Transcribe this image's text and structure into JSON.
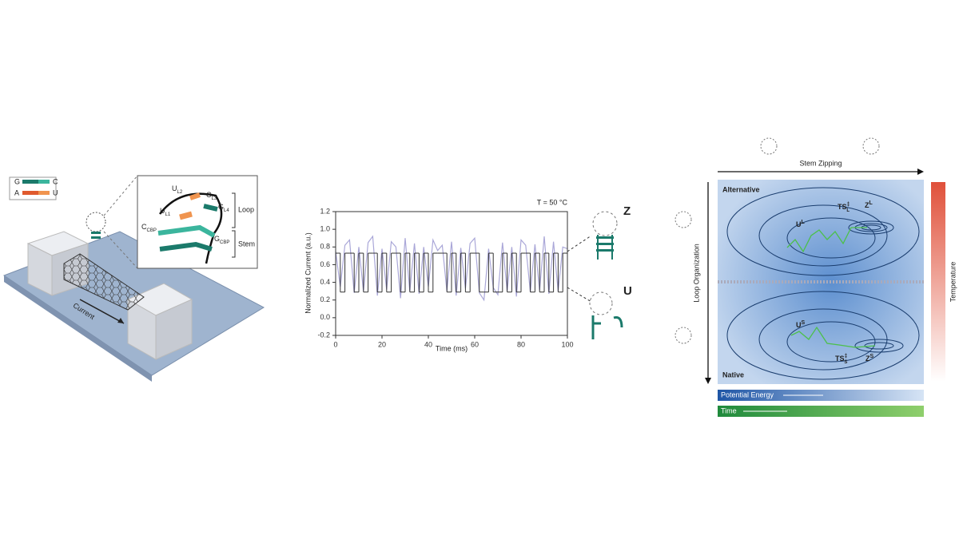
{
  "panel_a": {
    "legend": {
      "g": "G",
      "c": "C",
      "a": "A",
      "u": "U"
    },
    "current": "Current",
    "inset": {
      "ul2": {
        "base": "U",
        "sub": "L2"
      },
      "cl3": {
        "base": "C",
        "sub": "L3"
      },
      "ul1": {
        "base": "U",
        "sub": "L1"
      },
      "gl4": {
        "base": "G",
        "sub": "L4"
      },
      "ccbp": {
        "base": "C",
        "sub": "CBP"
      },
      "gcbp": {
        "base": "G",
        "sub": "CBP"
      },
      "loop": "Loop",
      "stem": "Stem"
    }
  },
  "chart_data": {
    "type": "line",
    "annotation": "T = 50 °C",
    "x_label": "Time (ms)",
    "y_label": "Normalized Current (a.u.)",
    "xlim": [
      0,
      100
    ],
    "ylim": [
      -0.2,
      1.2
    ],
    "xticks": [
      0,
      20,
      40,
      60,
      80,
      100
    ],
    "yticks": [
      -0.2,
      0.0,
      0.2,
      0.4,
      0.6,
      0.8,
      1.0,
      1.2
    ],
    "state_labels": {
      "z": "Z",
      "u": "U"
    },
    "x": [
      0,
      2,
      4,
      6,
      8,
      10,
      12,
      14,
      16,
      18,
      20,
      22,
      24,
      26,
      28,
      30,
      32,
      34,
      36,
      38,
      40,
      42,
      44,
      46,
      48,
      50,
      52,
      54,
      56,
      58,
      60,
      62,
      64,
      66,
      68,
      70,
      72,
      74,
      76,
      78,
      80,
      82,
      84,
      86,
      88,
      90,
      92,
      94,
      96,
      98,
      100
    ],
    "series": [
      {
        "color": "#aaa7d8",
        "style": "line",
        "values": [
          0.75,
          0.35,
          0.82,
          0.88,
          0.28,
          0.8,
          0.3,
          0.85,
          0.92,
          0.25,
          0.78,
          0.32,
          0.86,
          0.8,
          0.22,
          0.9,
          0.3,
          0.84,
          0.27,
          0.8,
          0.35,
          0.88,
          0.76,
          0.82,
          0.3,
          0.86,
          0.25,
          0.79,
          0.33,
          0.84,
          0.9,
          0.28,
          0.2,
          0.78,
          0.34,
          0.26,
          0.85,
          0.3,
          0.8,
          0.24,
          0.88,
          0.82,
          0.29,
          0.83,
          0.31,
          0.92,
          0.27,
          0.86,
          0.3,
          0.8,
          0.78
        ]
      },
      {
        "color": "#333333",
        "style": "step",
        "values": [
          0.73,
          0.29,
          0.73,
          0.73,
          0.29,
          0.73,
          0.29,
          0.73,
          0.73,
          0.29,
          0.73,
          0.29,
          0.73,
          0.73,
          0.29,
          0.73,
          0.29,
          0.73,
          0.29,
          0.73,
          0.29,
          0.73,
          0.73,
          0.73,
          0.29,
          0.73,
          0.29,
          0.73,
          0.29,
          0.73,
          0.73,
          0.29,
          0.29,
          0.73,
          0.29,
          0.29,
          0.73,
          0.29,
          0.73,
          0.29,
          0.73,
          0.73,
          0.29,
          0.73,
          0.29,
          0.73,
          0.29,
          0.73,
          0.29,
          0.73,
          0.73
        ]
      }
    ]
  },
  "panel_c": {
    "x_axis": "Stem Zipping",
    "y_axis": "Loop Organization",
    "temperature": "Temperature",
    "alternative": "Alternative",
    "native": "Native",
    "ul": {
      "base": "U",
      "sup": "L"
    },
    "tsl": {
      "base": "TS",
      "sup": "‡",
      "sub": "L"
    },
    "zl": {
      "base": "Z",
      "sup": "L"
    },
    "us": {
      "base": "U",
      "sup": "S"
    },
    "tss": {
      "base": "TS",
      "sup": "‡",
      "sub": "S"
    },
    "zs": {
      "base": "Z",
      "sup": "S"
    },
    "potential_energy": "Potential Energy",
    "time": "Time"
  }
}
